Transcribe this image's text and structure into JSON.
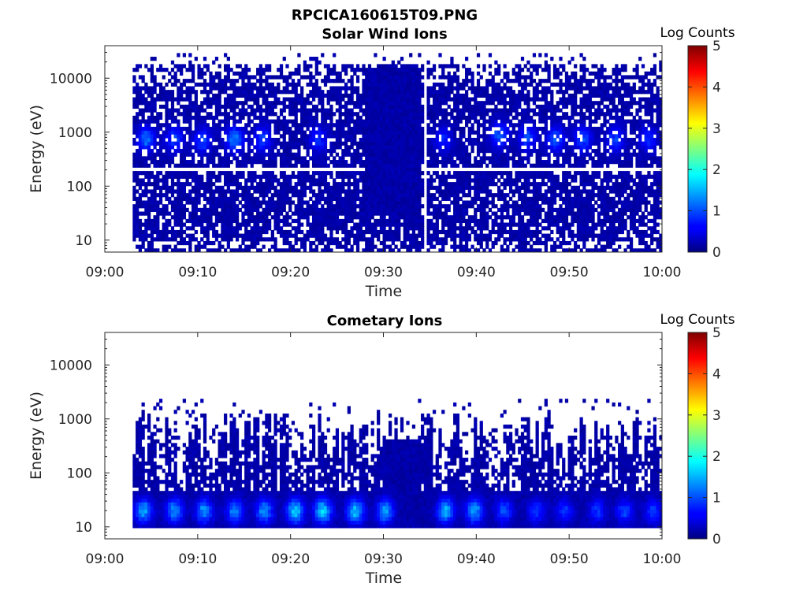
{
  "figure": {
    "title": "RPCICA160615T09.PNG"
  },
  "chart_data": [
    {
      "type": "heatmap",
      "title": "Solar Wind Ions",
      "xlabel": "Time",
      "ylabel": "Energy (eV)",
      "x_ticks": [
        "09:00",
        "09:10",
        "09:20",
        "09:30",
        "09:40",
        "09:50",
        "10:00"
      ],
      "y_ticks": [
        "10",
        "100",
        "1000",
        "10000"
      ],
      "y_scale": "log",
      "ylim": [
        6,
        40000
      ],
      "xlim_minutes": [
        0,
        60
      ],
      "colorbar": {
        "title": "Log Counts",
        "ticks": [
          "0",
          "1",
          "2",
          "3",
          "4",
          "5"
        ],
        "range": [
          0,
          5
        ],
        "colormap": "jet"
      },
      "data_coverage_minutes": [
        3,
        60
      ],
      "data_gap_minute": 34.5,
      "blank_energy_band_ev": 210,
      "typical_log_counts": 0.2,
      "peak_log_counts": 1.3,
      "hotspots": [
        {
          "minute": 4.5,
          "energy_ev": 750,
          "log_counts": 1.2
        },
        {
          "minute": 7.5,
          "energy_ev": 750,
          "log_counts": 1.0
        },
        {
          "minute": 10.5,
          "energy_ev": 700,
          "log_counts": 1.0
        },
        {
          "minute": 14.0,
          "energy_ev": 750,
          "log_counts": 1.3
        },
        {
          "minute": 17.0,
          "energy_ev": 750,
          "log_counts": 1.0
        },
        {
          "minute": 23.0,
          "energy_ev": 750,
          "log_counts": 0.9
        },
        {
          "minute": 36.5,
          "energy_ev": 750,
          "log_counts": 0.8
        },
        {
          "minute": 42.5,
          "energy_ev": 900,
          "log_counts": 1.1
        },
        {
          "minute": 45.5,
          "energy_ev": 800,
          "log_counts": 1.0
        },
        {
          "minute": 48.5,
          "energy_ev": 750,
          "log_counts": 1.1
        },
        {
          "minute": 51.5,
          "energy_ev": 750,
          "log_counts": 1.0
        },
        {
          "minute": 55.0,
          "energy_ev": 750,
          "log_counts": 1.0
        },
        {
          "minute": 58.5,
          "energy_ev": 750,
          "log_counts": 0.9
        }
      ]
    },
    {
      "type": "heatmap",
      "title": "Cometary Ions",
      "xlabel": "Time",
      "ylabel": "Energy (eV)",
      "x_ticks": [
        "09:00",
        "09:10",
        "09:20",
        "09:30",
        "09:40",
        "09:50",
        "10:00"
      ],
      "y_ticks": [
        "10",
        "100",
        "1000",
        "10000"
      ],
      "y_scale": "log",
      "ylim": [
        6,
        40000
      ],
      "xlim_minutes": [
        0,
        60
      ],
      "colorbar": {
        "title": "Log Counts",
        "ticks": [
          "0",
          "1",
          "2",
          "3",
          "4",
          "5"
        ],
        "range": [
          0,
          5
        ],
        "colormap": "jet"
      },
      "data_coverage_minutes": [
        3,
        60
      ],
      "typical_log_counts": 0.2,
      "peak_log_counts": 1.8,
      "hotspots": [
        {
          "minute": 4.2,
          "energy_ev": 20,
          "log_counts": 1.5
        },
        {
          "minute": 7.5,
          "energy_ev": 20,
          "log_counts": 1.4
        },
        {
          "minute": 10.7,
          "energy_ev": 20,
          "log_counts": 1.4
        },
        {
          "minute": 14.0,
          "energy_ev": 20,
          "log_counts": 1.3
        },
        {
          "minute": 17.2,
          "energy_ev": 20,
          "log_counts": 1.4
        },
        {
          "minute": 20.5,
          "energy_ev": 20,
          "log_counts": 1.7
        },
        {
          "minute": 23.5,
          "energy_ev": 20,
          "log_counts": 1.8
        },
        {
          "minute": 27.0,
          "energy_ev": 20,
          "log_counts": 1.7
        },
        {
          "minute": 30.2,
          "energy_ev": 20,
          "log_counts": 1.5
        },
        {
          "minute": 36.7,
          "energy_ev": 20,
          "log_counts": 1.6
        },
        {
          "minute": 39.8,
          "energy_ev": 20,
          "log_counts": 1.5
        },
        {
          "minute": 43.0,
          "energy_ev": 20,
          "log_counts": 1.1
        },
        {
          "minute": 46.5,
          "energy_ev": 20,
          "log_counts": 0.9
        },
        {
          "minute": 49.5,
          "energy_ev": 20,
          "log_counts": 0.9
        },
        {
          "minute": 53.0,
          "energy_ev": 20,
          "log_counts": 0.9
        },
        {
          "minute": 56.0,
          "energy_ev": 20,
          "log_counts": 1.0
        },
        {
          "minute": 59.0,
          "energy_ev": 20,
          "log_counts": 0.9
        }
      ]
    }
  ]
}
